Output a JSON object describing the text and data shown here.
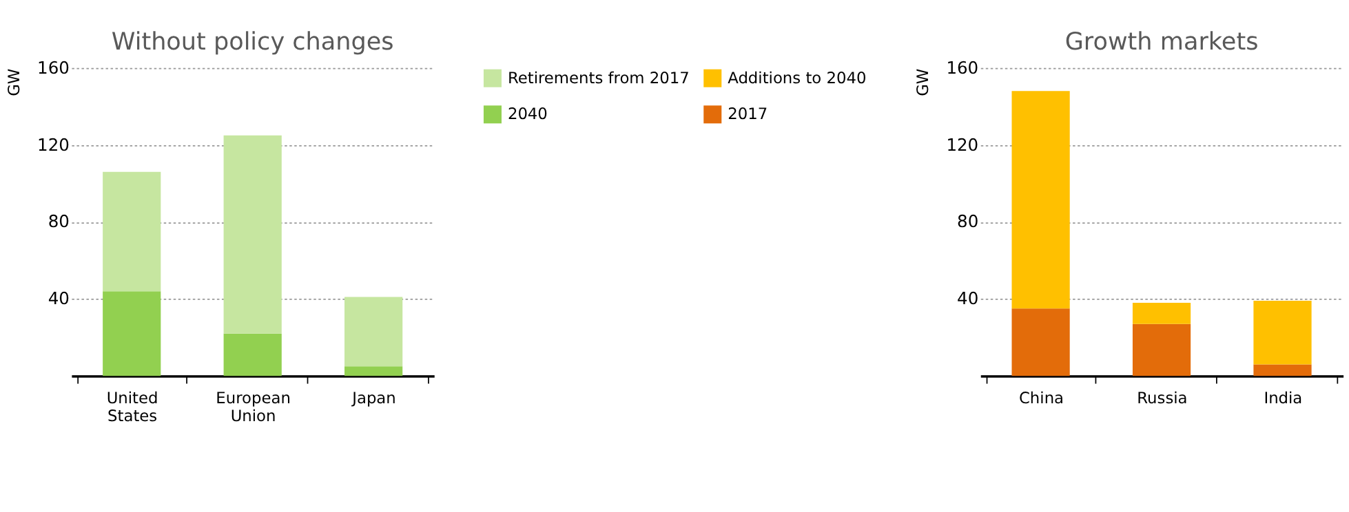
{
  "chart_data": [
    {
      "type": "bar",
      "title": "Without policy changes",
      "ylabel": "GW",
      "categories": [
        "United States",
        "European Union",
        "Japan"
      ],
      "stacked": true,
      "series": [
        {
          "name": "2040",
          "color": "#92d050",
          "values": [
            44,
            22,
            5
          ]
        },
        {
          "name": "Retirements from 2017",
          "color": "#c6e6a0",
          "values": [
            62,
            103,
            36
          ]
        }
      ],
      "ylim": [
        0,
        160
      ],
      "yticks": [
        40,
        80,
        120,
        160
      ],
      "grid": "y",
      "legend": "right"
    },
    {
      "type": "bar",
      "title": "Growth markets",
      "ylabel": "GW",
      "categories": [
        "China",
        "Russia",
        "India"
      ],
      "stacked": true,
      "series": [
        {
          "name": "2017",
          "color": "#e36c0a",
          "values": [
            35,
            27,
            6
          ]
        },
        {
          "name": "Additions to 2040",
          "color": "#ffc000",
          "values": [
            113,
            11,
            33
          ]
        }
      ],
      "ylim": [
        0,
        160
      ],
      "yticks": [
        40,
        80,
        120,
        160
      ],
      "grid": "y",
      "legend": "left"
    }
  ]
}
